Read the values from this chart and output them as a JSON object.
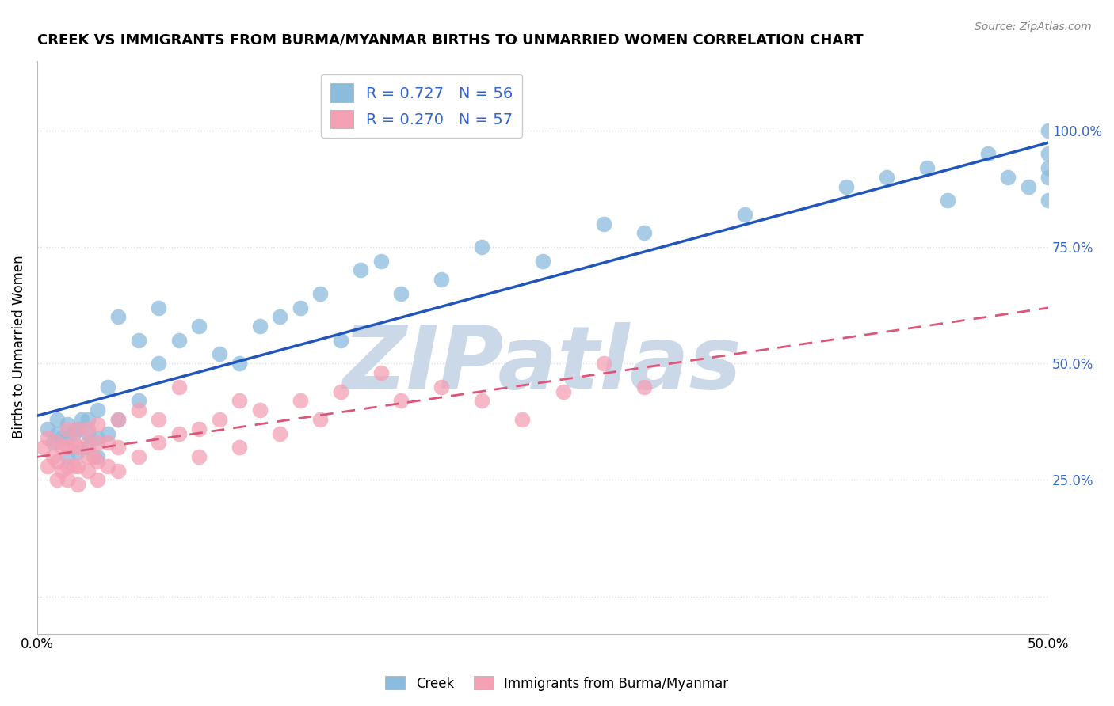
{
  "title": "CREEK VS IMMIGRANTS FROM BURMA/MYANMAR BIRTHS TO UNMARRIED WOMEN CORRELATION CHART",
  "source": "Source: ZipAtlas.com",
  "ylabel": "Births to Unmarried Women",
  "x_min": 0.0,
  "x_max": 0.5,
  "y_min": -0.08,
  "y_max": 1.15,
  "x_ticks": [
    0.0,
    0.1,
    0.2,
    0.3,
    0.4,
    0.5
  ],
  "x_tick_labels": [
    "0.0%",
    "",
    "",
    "",
    "",
    "50.0%"
  ],
  "y_ticks": [
    0.0,
    0.25,
    0.5,
    0.75,
    1.0
  ],
  "y_tick_labels": [
    "",
    "25.0%",
    "50.0%",
    "75.0%",
    "100.0%"
  ],
  "legend_label_creek": "R = 0.727   N = 56",
  "legend_label_burma": "R = 0.270   N = 57",
  "creek_color": "#8BBCDD",
  "burma_color": "#F4A0B5",
  "creek_line_color": "#2255BB",
  "burma_line_color": "#DD5577",
  "watermark": "ZIPatlas",
  "watermark_color": "#CBD8E8",
  "grid_color": "#DDDDDD",
  "background_color": "#FFFFFF",
  "creek_x": [
    0.005,
    0.008,
    0.01,
    0.01,
    0.012,
    0.015,
    0.015,
    0.015,
    0.018,
    0.02,
    0.02,
    0.022,
    0.025,
    0.025,
    0.025,
    0.03,
    0.03,
    0.03,
    0.035,
    0.035,
    0.04,
    0.04,
    0.05,
    0.05,
    0.06,
    0.06,
    0.07,
    0.08,
    0.09,
    0.1,
    0.11,
    0.12,
    0.13,
    0.14,
    0.15,
    0.16,
    0.17,
    0.18,
    0.2,
    0.22,
    0.25,
    0.28,
    0.3,
    0.35,
    0.4,
    0.42,
    0.44,
    0.45,
    0.47,
    0.48,
    0.49,
    0.5,
    0.5,
    0.5,
    0.5,
    0.5
  ],
  "creek_y": [
    0.36,
    0.33,
    0.35,
    0.38,
    0.34,
    0.3,
    0.34,
    0.37,
    0.35,
    0.31,
    0.36,
    0.38,
    0.32,
    0.35,
    0.38,
    0.3,
    0.34,
    0.4,
    0.35,
    0.45,
    0.38,
    0.6,
    0.42,
    0.55,
    0.5,
    0.62,
    0.55,
    0.58,
    0.52,
    0.5,
    0.58,
    0.6,
    0.62,
    0.65,
    0.55,
    0.7,
    0.72,
    0.65,
    0.68,
    0.75,
    0.72,
    0.8,
    0.78,
    0.82,
    0.88,
    0.9,
    0.92,
    0.85,
    0.95,
    0.9,
    0.88,
    0.85,
    0.9,
    0.92,
    0.95,
    1.0
  ],
  "burma_x": [
    0.003,
    0.005,
    0.005,
    0.008,
    0.01,
    0.01,
    0.01,
    0.012,
    0.012,
    0.015,
    0.015,
    0.015,
    0.015,
    0.018,
    0.018,
    0.02,
    0.02,
    0.02,
    0.02,
    0.025,
    0.025,
    0.025,
    0.025,
    0.028,
    0.03,
    0.03,
    0.03,
    0.03,
    0.035,
    0.035,
    0.04,
    0.04,
    0.04,
    0.05,
    0.05,
    0.06,
    0.06,
    0.07,
    0.07,
    0.08,
    0.08,
    0.09,
    0.1,
    0.1,
    0.11,
    0.12,
    0.13,
    0.14,
    0.15,
    0.17,
    0.18,
    0.2,
    0.22,
    0.24,
    0.26,
    0.28,
    0.3
  ],
  "burma_y": [
    0.32,
    0.28,
    0.34,
    0.3,
    0.25,
    0.29,
    0.33,
    0.27,
    0.32,
    0.25,
    0.28,
    0.32,
    0.36,
    0.28,
    0.33,
    0.24,
    0.28,
    0.32,
    0.36,
    0.27,
    0.3,
    0.33,
    0.36,
    0.3,
    0.25,
    0.29,
    0.33,
    0.37,
    0.28,
    0.33,
    0.27,
    0.32,
    0.38,
    0.3,
    0.4,
    0.33,
    0.38,
    0.35,
    0.45,
    0.3,
    0.36,
    0.38,
    0.32,
    0.42,
    0.4,
    0.35,
    0.42,
    0.38,
    0.44,
    0.48,
    0.42,
    0.45,
    0.42,
    0.38,
    0.44,
    0.5,
    0.45
  ],
  "title_fontsize": 13,
  "legend_fontsize": 14,
  "axis_label_fontsize": 12,
  "tick_fontsize": 12
}
